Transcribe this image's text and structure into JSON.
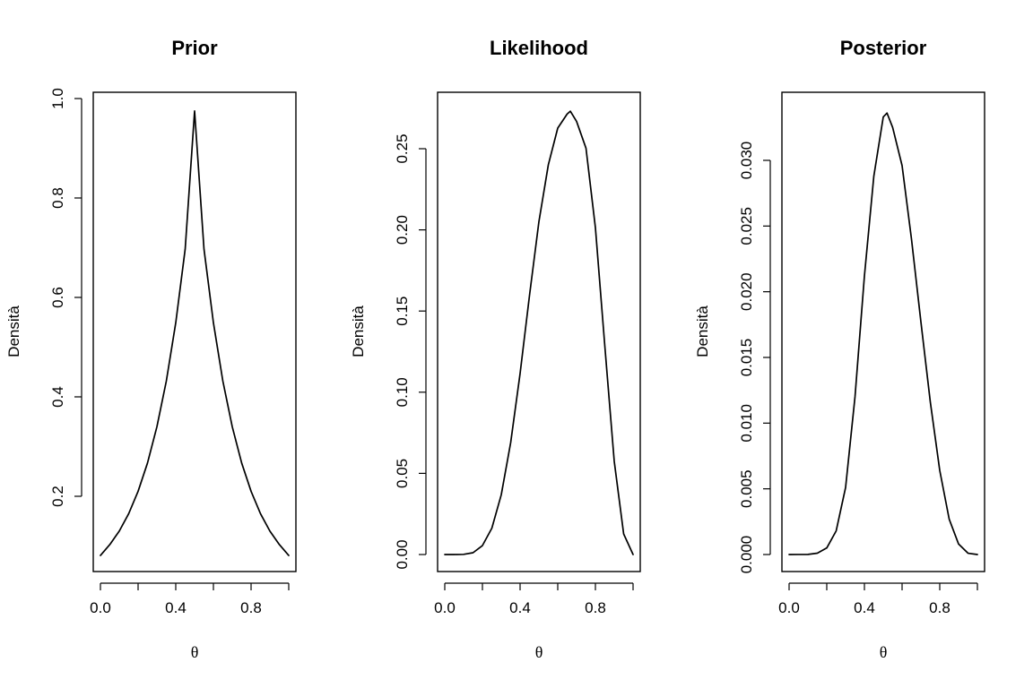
{
  "chart_data": [
    {
      "type": "line",
      "title": "Prior",
      "xlabel": "θ",
      "ylabel": "Densità",
      "xlim": [
        0,
        1
      ],
      "ylim": [
        0.08,
        1.0
      ],
      "xticks": [
        0,
        0.2,
        0.4,
        0.6,
        0.8,
        1.0
      ],
      "xtick_labels": [
        "0.0",
        "",
        "0.4",
        "",
        "0.8",
        ""
      ],
      "yticks": [
        0.2,
        0.4,
        0.6,
        0.8,
        1.0
      ],
      "ytick_labels": [
        "0.2",
        "0.4",
        "0.6",
        "0.8",
        "1.0"
      ],
      "grid": false,
      "series": [
        {
          "x": [
            0,
            0.05,
            0.1,
            0.15,
            0.2,
            0.25,
            0.3,
            0.35,
            0.4,
            0.45,
            0.5,
            0.55,
            0.6,
            0.65,
            0.7,
            0.75,
            0.8,
            0.85,
            0.9,
            0.95,
            1.0
          ],
          "values": [
            0.081,
            0.103,
            0.13,
            0.165,
            0.21,
            0.267,
            0.34,
            0.432,
            0.549,
            0.697,
            0.975,
            0.697,
            0.549,
            0.432,
            0.34,
            0.267,
            0.21,
            0.165,
            0.13,
            0.103,
            0.081
          ]
        }
      ]
    },
    {
      "type": "line",
      "title": "Likelihood",
      "xlabel": "θ",
      "ylabel": "Densità",
      "xlim": [
        0,
        1
      ],
      "ylim": [
        0,
        0.28
      ],
      "xticks": [
        0,
        0.2,
        0.4,
        0.6,
        0.8,
        1.0
      ],
      "xtick_labels": [
        "0.0",
        "",
        "0.4",
        "",
        "0.8",
        ""
      ],
      "yticks": [
        0.0,
        0.05,
        0.1,
        0.15,
        0.2,
        0.25
      ],
      "ytick_labels": [
        "0.00",
        "0.05",
        "0.10",
        "0.15",
        "0.20",
        "0.25"
      ],
      "grid": false,
      "series": [
        {
          "x": [
            0,
            0.05,
            0.1,
            0.15,
            0.2,
            0.25,
            0.3,
            0.35,
            0.4,
            0.45,
            0.5,
            0.55,
            0.6,
            0.65,
            0.667,
            0.7,
            0.75,
            0.8,
            0.85,
            0.9,
            0.95,
            1.0
          ],
          "values": [
            0,
            0.0,
            0.0001,
            0.0011,
            0.0055,
            0.0162,
            0.0368,
            0.0689,
            0.1115,
            0.1596,
            0.2051,
            0.2401,
            0.2627,
            0.2714,
            0.2731,
            0.2668,
            0.2503,
            0.2013,
            0.1284,
            0.0574,
            0.0127,
            0
          ]
        }
      ]
    },
    {
      "type": "line",
      "title": "Posterior",
      "xlabel": "θ",
      "ylabel": "Densità",
      "xlim": [
        0,
        1
      ],
      "ylim": [
        -0.001,
        0.035
      ],
      "xticks": [
        0,
        0.2,
        0.4,
        0.6,
        0.8,
        1.0
      ],
      "xtick_labels": [
        "0.0",
        "",
        "0.4",
        "",
        "0.8",
        ""
      ],
      "yticks": [
        0.0,
        0.005,
        0.01,
        0.015,
        0.02,
        0.025,
        0.03
      ],
      "ytick_labels": [
        "0.000",
        "0.005",
        "0.010",
        "0.015",
        "0.020",
        "0.025",
        "0.030"
      ],
      "grid": false,
      "series": [
        {
          "x": [
            0,
            0.1,
            0.15,
            0.2,
            0.25,
            0.3,
            0.35,
            0.4,
            0.45,
            0.48,
            0.5,
            0.52,
            0.55,
            0.6,
            0.65,
            0.7,
            0.75,
            0.8,
            0.85,
            0.9,
            0.95,
            1.0
          ],
          "values": [
            0,
            1e-05,
            0.0001,
            0.0005,
            0.0018,
            0.0051,
            0.012,
            0.0212,
            0.0288,
            0.0315,
            0.0333,
            0.0336,
            0.0325,
            0.0296,
            0.024,
            0.0177,
            0.0116,
            0.0064,
            0.0027,
            0.0008,
            0.0001,
            0
          ]
        }
      ]
    }
  ]
}
